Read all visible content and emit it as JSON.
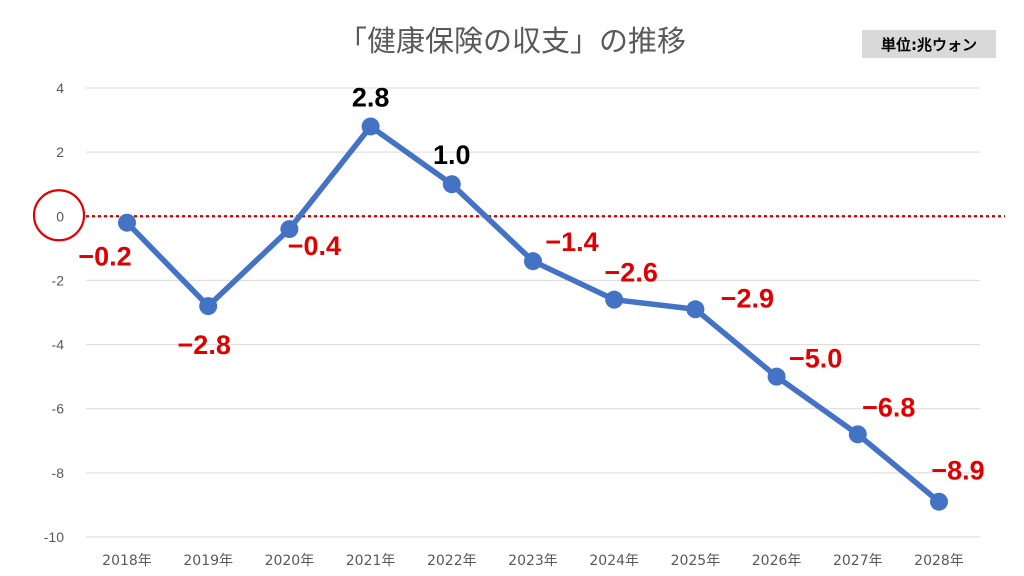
{
  "header": {
    "title": "「健康保険の収支」の推移",
    "unit": "単位:兆ウォン"
  },
  "colors": {
    "line": "#4472c4",
    "negative_label": "#e00000",
    "positive_label": "#000000",
    "reference_line": "#c00000",
    "grid": "#d9d9d9"
  },
  "chart_data": {
    "type": "line",
    "title": "「健康保険の収支」の推移",
    "unit": "単位:兆ウォン",
    "categories": [
      "2018年",
      "2019年",
      "2020年",
      "2021年",
      "2022年",
      "2023年",
      "2024年",
      "2025年",
      "2026年",
      "2027年",
      "2028年"
    ],
    "values": [
      -0.2,
      -2.8,
      -0.4,
      2.8,
      1.0,
      -1.4,
      -2.6,
      -2.9,
      -5.0,
      -6.8,
      -8.9
    ],
    "data_labels": [
      "−0.2",
      "−2.8",
      "−0.4",
      "2.8",
      "1.0",
      "−1.4",
      "−2.6",
      "−2.9",
      "−5.0",
      "−6.8",
      "−8.9"
    ],
    "ylim": [
      -10,
      4
    ],
    "yticks": [
      4,
      2,
      0,
      -2,
      -4,
      -6,
      -8,
      -10
    ],
    "ytick_labels": [
      "4",
      "2",
      "0",
      "-2",
      "-4",
      "-6",
      "-8",
      "-10"
    ],
    "grid": true,
    "reference_line": {
      "y": 0,
      "style": "dotted",
      "color": "#c00000"
    },
    "highlight": {
      "shape": "circle",
      "target": "y-axis label 0",
      "color": "#e00000"
    }
  }
}
